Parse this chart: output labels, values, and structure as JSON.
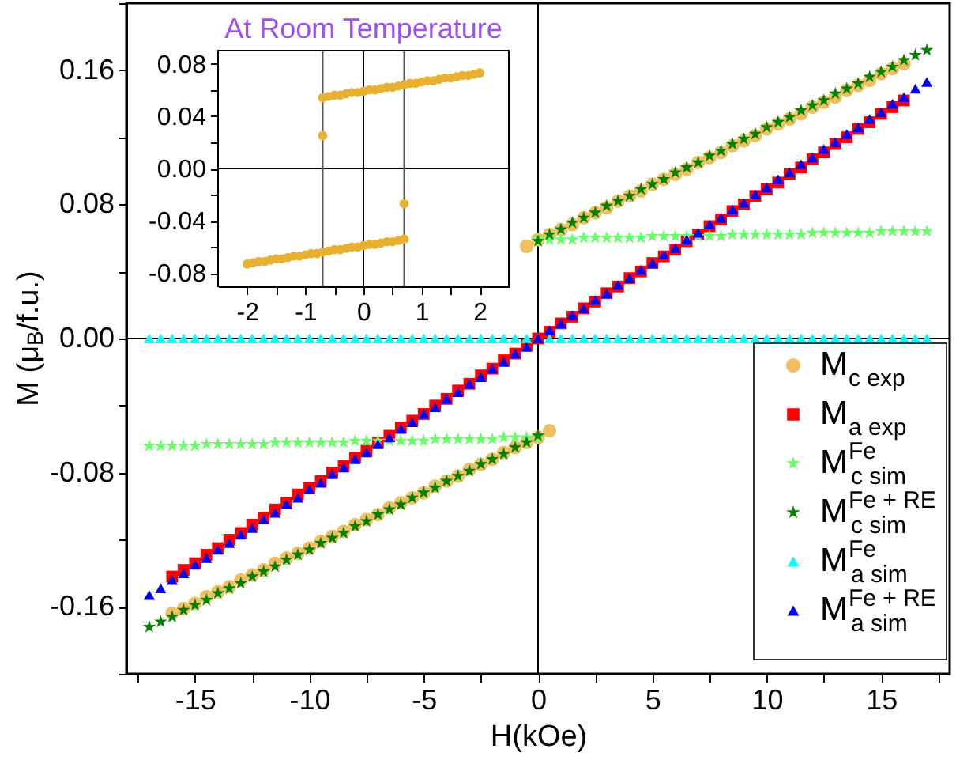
{
  "chart_data": [
    {
      "type": "scatter",
      "xlabel": "H(kOe)",
      "ylabel": "M (μ$_{B}$/f.u.)",
      "xlim": [
        -18,
        18
      ],
      "ylim": [
        -0.2,
        0.2
      ],
      "xticks": [
        {
          "value": -17.5,
          "label": null
        },
        -15,
        {
          "value": -12.5,
          "label": null
        },
        -10,
        {
          "value": -7.5,
          "label": null
        },
        -5,
        {
          "value": -2.5,
          "label": null
        },
        0,
        {
          "value": 2.5,
          "label": null
        },
        5,
        {
          "value": 7.5,
          "label": null
        },
        10,
        {
          "value": 12.5,
          "label": null
        },
        15,
        {
          "value": 17.5,
          "label": null
        }
      ],
      "yticks": [
        {
          "value": -0.2,
          "label": null
        },
        -0.16,
        {
          "value": -0.12,
          "label": null
        },
        -0.08,
        {
          "value": -0.04,
          "label": null
        },
        {
          "value": 0,
          "label": "0.00"
        },
        {
          "value": 0.04,
          "label": null
        },
        0.08,
        {
          "value": 0.12,
          "label": null
        },
        0.16,
        {
          "value": 0.2,
          "label": null
        }
      ],
      "legend": "bottom right",
      "ref_lines": [
        {
          "axis": "x",
          "value": 0,
          "color": "#000000"
        },
        {
          "axis": "y",
          "value": 0,
          "color": "#000000"
        }
      ],
      "series": [
        {
          "name": "M$_{c exp}$",
          "color": "#f0c060",
          "marker": "circle",
          "x": [
            -16,
            -15.5,
            -15,
            -14.5,
            -14,
            -13.5,
            -13,
            -12.5,
            -12,
            -11.5,
            -11,
            -10.5,
            -10,
            -9.5,
            -9,
            -8.5,
            -8,
            -7.5,
            -7,
            -6.5,
            -6,
            -5.5,
            -5,
            -4.5,
            -4,
            -3.5,
            -3,
            -2.5,
            -2,
            -1.5,
            -1,
            -0.5,
            0,
            0.5,
            -0.5,
            0,
            0.5,
            1,
            1.5,
            2,
            2.5,
            3,
            3.5,
            4,
            4.5,
            5,
            5.5,
            6,
            6.5,
            7,
            7.5,
            8,
            8.5,
            9,
            9.5,
            10,
            10.5,
            11,
            11.5,
            12,
            12.5,
            13,
            13.5,
            14,
            14.5,
            15,
            15.5,
            16
          ],
          "values": [
            -0.164,
            -0.161,
            -0.158,
            -0.154,
            -0.151,
            -0.148,
            -0.144,
            -0.141,
            -0.138,
            -0.134,
            -0.131,
            -0.128,
            -0.125,
            -0.121,
            -0.118,
            -0.115,
            -0.111,
            -0.108,
            -0.105,
            -0.101,
            -0.098,
            -0.095,
            -0.092,
            -0.088,
            -0.085,
            -0.082,
            -0.078,
            -0.075,
            -0.072,
            -0.068,
            -0.065,
            -0.062,
            -0.059,
            -0.055,
            0.055,
            0.059,
            0.062,
            0.065,
            0.068,
            0.072,
            0.075,
            0.078,
            0.082,
            0.085,
            0.088,
            0.092,
            0.095,
            0.098,
            0.101,
            0.105,
            0.108,
            0.111,
            0.115,
            0.118,
            0.121,
            0.125,
            0.128,
            0.131,
            0.134,
            0.138,
            0.141,
            0.144,
            0.148,
            0.151,
            0.154,
            0.158,
            0.161,
            0.164
          ]
        },
        {
          "name": "M$_{a exp}$",
          "color": "#ff0000",
          "marker": "square",
          "x": [
            -16,
            -15.5,
            -15,
            -14.5,
            -14,
            -13.5,
            -13,
            -12.5,
            -12,
            -11.5,
            -11,
            -10.5,
            -10,
            -9.5,
            -9,
            -8.5,
            -8,
            -7.5,
            -7,
            -6.5,
            -6,
            -5.5,
            -5,
            -4.5,
            -4,
            -3.5,
            -3,
            -2.5,
            -2,
            -1.5,
            -1,
            -0.5,
            0,
            0.5,
            1,
            1.5,
            2,
            2.5,
            3,
            3.5,
            4,
            4.5,
            5,
            5.5,
            6,
            6.5,
            7,
            7.5,
            8,
            8.5,
            9,
            9.5,
            10,
            10.5,
            11,
            11.5,
            12,
            12.5,
            13,
            13.5,
            14,
            14.5,
            15,
            15.5,
            16
          ],
          "values": [
            -0.142,
            -0.138,
            -0.134,
            -0.129,
            -0.125,
            -0.12,
            -0.116,
            -0.111,
            -0.107,
            -0.102,
            -0.098,
            -0.093,
            -0.089,
            -0.085,
            -0.08,
            -0.076,
            -0.071,
            -0.067,
            -0.062,
            -0.058,
            -0.053,
            -0.049,
            -0.045,
            -0.04,
            -0.036,
            -0.031,
            -0.027,
            -0.022,
            -0.018,
            -0.013,
            -0.009,
            -0.004,
            0,
            0.004,
            0.009,
            0.013,
            0.018,
            0.022,
            0.027,
            0.031,
            0.036,
            0.04,
            0.045,
            0.049,
            0.053,
            0.058,
            0.062,
            0.067,
            0.071,
            0.076,
            0.08,
            0.085,
            0.089,
            0.093,
            0.098,
            0.102,
            0.107,
            0.111,
            0.116,
            0.12,
            0.125,
            0.129,
            0.134,
            0.138,
            0.142
          ]
        },
        {
          "name": "M$^{Fe}$$_{c sim}$",
          "color": "#66ff66",
          "marker": "star",
          "x": [
            -17,
            -16.5,
            -16,
            -15.5,
            -15,
            -14.5,
            -14,
            -13.5,
            -13,
            -12.5,
            -12,
            -11.5,
            -11,
            -10.5,
            -10,
            -9.5,
            -9,
            -8.5,
            -8,
            -7.5,
            -7,
            -6.5,
            -6,
            -5.5,
            -5,
            -4.5,
            -4,
            -3.5,
            -3,
            -2.5,
            -2,
            -1.5,
            -1,
            -0.5,
            0,
            0,
            0.5,
            1,
            1.5,
            2,
            2.5,
            3,
            3.5,
            4,
            4.5,
            5,
            5.5,
            6,
            6.5,
            7,
            7.5,
            8,
            8.5,
            9,
            9.5,
            10,
            10.5,
            11,
            11.5,
            12,
            12.5,
            13,
            13.5,
            14,
            14.5,
            15,
            15.5,
            16,
            16.5,
            17
          ],
          "values": [
            -0.064,
            -0.064,
            -0.064,
            -0.064,
            -0.064,
            -0.063,
            -0.063,
            -0.063,
            -0.063,
            -0.063,
            -0.063,
            -0.062,
            -0.062,
            -0.062,
            -0.062,
            -0.062,
            -0.062,
            -0.062,
            -0.061,
            -0.061,
            -0.061,
            -0.061,
            -0.061,
            -0.061,
            -0.061,
            -0.06,
            -0.06,
            -0.06,
            -0.06,
            -0.06,
            -0.06,
            -0.059,
            -0.059,
            -0.059,
            -0.059,
            0.059,
            0.059,
            0.059,
            0.059,
            0.06,
            0.06,
            0.06,
            0.06,
            0.06,
            0.06,
            0.061,
            0.061,
            0.061,
            0.061,
            0.061,
            0.061,
            0.061,
            0.062,
            0.062,
            0.062,
            0.062,
            0.062,
            0.062,
            0.062,
            0.063,
            0.063,
            0.063,
            0.063,
            0.063,
            0.063,
            0.064,
            0.064,
            0.064,
            0.064,
            0.064
          ]
        },
        {
          "name": "M$^{Fe + RE}$$_{c sim}$",
          "color": "#008000",
          "marker": "star",
          "x": [
            -17,
            -16.5,
            -16,
            -15.5,
            -15,
            -14.5,
            -14,
            -13.5,
            -13,
            -12.5,
            -12,
            -11.5,
            -11,
            -10.5,
            -10,
            -9.5,
            -9,
            -8.5,
            -8,
            -7.5,
            -7,
            -6.5,
            -6,
            -5.5,
            -5,
            -4.5,
            -4,
            -3.5,
            -3,
            -2.5,
            -2,
            -1.5,
            -1,
            -0.5,
            0,
            0,
            0.5,
            1,
            1.5,
            2,
            2.5,
            3,
            3.5,
            4,
            4.5,
            5,
            5.5,
            6,
            6.5,
            7,
            7.5,
            8,
            8.5,
            9,
            9.5,
            10,
            10.5,
            11,
            11.5,
            12,
            12.5,
            13,
            13.5,
            14,
            14.5,
            15,
            15.5,
            16,
            16.5,
            17
          ],
          "values": [
            -0.172,
            -0.169,
            -0.166,
            -0.162,
            -0.159,
            -0.156,
            -0.152,
            -0.149,
            -0.146,
            -0.142,
            -0.139,
            -0.136,
            -0.132,
            -0.129,
            -0.126,
            -0.122,
            -0.119,
            -0.116,
            -0.112,
            -0.109,
            -0.105,
            -0.102,
            -0.099,
            -0.095,
            -0.092,
            -0.089,
            -0.085,
            -0.082,
            -0.079,
            -0.075,
            -0.072,
            -0.069,
            -0.065,
            -0.062,
            -0.058,
            0.058,
            0.062,
            0.065,
            0.069,
            0.072,
            0.075,
            0.079,
            0.082,
            0.085,
            0.089,
            0.092,
            0.095,
            0.099,
            0.102,
            0.105,
            0.109,
            0.112,
            0.116,
            0.119,
            0.122,
            0.126,
            0.129,
            0.132,
            0.136,
            0.139,
            0.142,
            0.146,
            0.149,
            0.152,
            0.156,
            0.159,
            0.162,
            0.166,
            0.169,
            0.172
          ]
        },
        {
          "name": "M$^{Fe}$$_{a sim}$",
          "color": "#00ffff",
          "marker": "triangle",
          "x": [
            -17,
            -16.5,
            -16,
            -15.5,
            -15,
            -14.5,
            -14,
            -13.5,
            -13,
            -12.5,
            -12,
            -11.5,
            -11,
            -10.5,
            -10,
            -9.5,
            -9,
            -8.5,
            -8,
            -7.5,
            -7,
            -6.5,
            -6,
            -5.5,
            -5,
            -4.5,
            -4,
            -3.5,
            -3,
            -2.5,
            -2,
            -1.5,
            -1,
            -0.5,
            0,
            0.5,
            1,
            1.5,
            2,
            2.5,
            3,
            3.5,
            4,
            4.5,
            5,
            5.5,
            6,
            6.5,
            7,
            7.5,
            8,
            8.5,
            9,
            9.5,
            10,
            10.5,
            11,
            11.5,
            12,
            12.5,
            13,
            13.5,
            14,
            14.5,
            15,
            15.5,
            16,
            16.5,
            17
          ],
          "values": [
            0,
            0,
            0,
            0,
            0,
            0,
            0,
            0,
            0,
            0,
            0,
            0,
            0,
            0,
            0,
            0,
            0,
            0,
            0,
            0,
            0,
            0,
            0,
            0,
            0,
            0,
            0,
            0,
            0,
            0,
            0,
            0,
            0,
            0,
            0,
            0,
            0,
            0,
            0,
            0,
            0,
            0,
            0,
            0,
            0,
            0,
            0,
            0,
            0,
            0,
            0,
            0,
            0,
            0,
            0,
            0,
            0,
            0,
            0,
            0,
            0,
            0,
            0,
            0,
            0,
            0,
            0,
            0,
            0
          ]
        },
        {
          "name": "M$^{Fe + RE}$$_{a sim}$",
          "color": "#0000ff",
          "marker": "triangle",
          "x": [
            -17,
            -16.5,
            -16,
            -15.5,
            -15,
            -14.5,
            -14,
            -13.5,
            -13,
            -12.5,
            -12,
            -11.5,
            -11,
            -10.5,
            -10,
            -9.5,
            -9,
            -8.5,
            -8,
            -7.5,
            -7,
            -6.5,
            -6,
            -5.5,
            -5,
            -4.5,
            -4,
            -3.5,
            -3,
            -2.5,
            -2,
            -1.5,
            -1,
            -0.5,
            0,
            0.5,
            1,
            1.5,
            2,
            2.5,
            3,
            3.5,
            4,
            4.5,
            5,
            5.5,
            6,
            6.5,
            7,
            7.5,
            8,
            8.5,
            9,
            9.5,
            10,
            10.5,
            11,
            11.5,
            12,
            12.5,
            13,
            13.5,
            14,
            14.5,
            15,
            15.5,
            16,
            16.5,
            17
          ],
          "values": [
            -0.153,
            -0.149,
            -0.144,
            -0.14,
            -0.135,
            -0.131,
            -0.126,
            -0.122,
            -0.117,
            -0.113,
            -0.108,
            -0.104,
            -0.099,
            -0.095,
            -0.09,
            -0.086,
            -0.081,
            -0.077,
            -0.072,
            -0.068,
            -0.063,
            -0.059,
            -0.054,
            -0.05,
            -0.045,
            -0.041,
            -0.036,
            -0.032,
            -0.027,
            -0.023,
            -0.018,
            -0.014,
            -0.009,
            -0.005,
            0,
            0.005,
            0.009,
            0.014,
            0.018,
            0.023,
            0.027,
            0.032,
            0.036,
            0.041,
            0.045,
            0.05,
            0.054,
            0.059,
            0.063,
            0.068,
            0.072,
            0.077,
            0.081,
            0.086,
            0.09,
            0.095,
            0.099,
            0.104,
            0.108,
            0.113,
            0.117,
            0.122,
            0.126,
            0.131,
            0.135,
            0.14,
            0.144,
            0.149,
            0.153
          ]
        }
      ]
    },
    {
      "type": "scatter",
      "title": "At Room Temperature",
      "xlim": [
        -2.5,
        2.5
      ],
      "ylim": [
        -0.09,
        0.09
      ],
      "xticks": [
        -2,
        {
          "value": -1.5,
          "label": null
        },
        -1,
        {
          "value": -0.5,
          "label": null
        },
        0,
        {
          "value": 0.5,
          "label": null
        },
        1,
        {
          "value": 1.5,
          "label": null
        },
        2
      ],
      "yticks": [
        -0.08,
        {
          "value": -0.06,
          "label": null
        },
        -0.04,
        {
          "value": -0.02,
          "label": null
        },
        {
          "value": 0,
          "label": "0.00"
        },
        {
          "value": 0.02,
          "label": null
        },
        0.04,
        {
          "value": 0.06,
          "label": null
        },
        0.08
      ],
      "ref_lines": [
        {
          "axis": "x",
          "value": 0,
          "color": "#000000"
        },
        {
          "axis": "y",
          "value": 0,
          "color": "#000000"
        },
        {
          "axis": "x",
          "value": -0.7,
          "color": "#555555"
        },
        {
          "axis": "x",
          "value": 0.7,
          "color": "#555555"
        }
      ],
      "series": [
        {
          "color": "#e8b030",
          "marker": "circle",
          "x": [
            -2.0,
            -1.9,
            -1.8,
            -1.7,
            -1.6,
            -1.5,
            -1.4,
            -1.3,
            -1.2,
            -1.1,
            -1.0,
            -0.9,
            -0.8,
            -0.7,
            -0.6,
            -0.5,
            -0.4,
            -0.3,
            -0.2,
            -0.1,
            0,
            0.1,
            0.2,
            0.3,
            0.4,
            0.5,
            0.6,
            0.7,
            0.7,
            -0.7,
            -0.6,
            -0.5,
            -0.4,
            -0.3,
            -0.2,
            -0.1,
            0,
            0.1,
            0.2,
            0.3,
            0.4,
            0.5,
            0.6,
            0.7,
            0.8,
            0.9,
            1.0,
            1.1,
            1.2,
            1.3,
            1.4,
            1.5,
            1.6,
            1.7,
            1.8,
            1.9,
            2.0,
            -0.7
          ],
          "values": [
            -0.073,
            -0.072,
            -0.071,
            -0.071,
            -0.07,
            -0.069,
            -0.069,
            -0.068,
            -0.067,
            -0.067,
            -0.066,
            -0.065,
            -0.065,
            -0.064,
            -0.063,
            -0.062,
            -0.062,
            -0.061,
            -0.06,
            -0.06,
            -0.059,
            -0.058,
            -0.058,
            -0.057,
            -0.056,
            -0.056,
            -0.055,
            -0.054,
            -0.027,
            0.054,
            0.055,
            0.056,
            0.056,
            0.057,
            0.058,
            0.058,
            0.059,
            0.06,
            0.06,
            0.061,
            0.062,
            0.062,
            0.063,
            0.064,
            0.065,
            0.065,
            0.066,
            0.067,
            0.067,
            0.068,
            0.069,
            0.069,
            0.07,
            0.071,
            0.071,
            0.072,
            0.073,
            0.025
          ]
        }
      ]
    }
  ]
}
